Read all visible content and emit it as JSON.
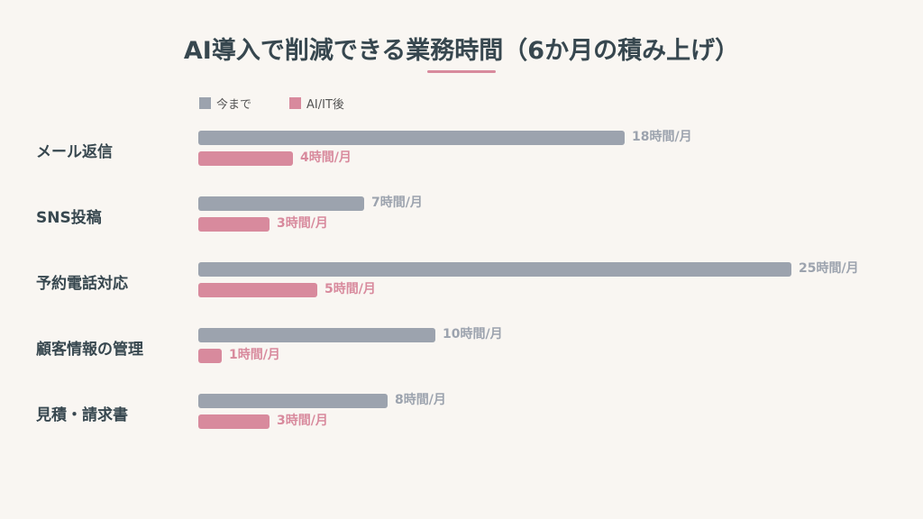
{
  "title": "AI導入で削減できる業務時間（6か月の積み上げ）",
  "legend": [
    {
      "label": "今まで",
      "color": "#9ca3ae"
    },
    {
      "label": "AI/IT後",
      "color": "#d88a9d"
    }
  ],
  "colors": {
    "before": "#9ca3ae",
    "after": "#d88a9d",
    "accent_underline": "#d88a9d",
    "background": "#f9f6f2",
    "text": "#37474f"
  },
  "unit": "時間/月",
  "rows": [
    {
      "label": "メール返信",
      "before": 18,
      "after": 4,
      "before_text": "18時間/月",
      "after_text": "4時間/月"
    },
    {
      "label": "SNS投稿",
      "before": 7,
      "after": 3,
      "before_text": "7時間/月",
      "after_text": "3時間/月"
    },
    {
      "label": "予約電話対応",
      "before": 25,
      "after": 5,
      "before_text": "25時間/月",
      "after_text": "5時間/月"
    },
    {
      "label": "顧客情報の管理",
      "before": 10,
      "after": 1,
      "before_text": "10時間/月",
      "after_text": "1時間/月"
    },
    {
      "label": "見積・請求書",
      "before": 8,
      "after": 3,
      "before_text": "8時間/月",
      "after_text": "3時間/月"
    }
  ],
  "chart_data": {
    "type": "bar",
    "orientation": "horizontal",
    "title": "AI導入で削減できる業務時間（6か月の積み上げ）",
    "categories": [
      "メール返信",
      "SNS投稿",
      "予約電話対応",
      "顧客情報の管理",
      "見積・請求書"
    ],
    "series": [
      {
        "name": "今まで",
        "values": [
          18,
          7,
          25,
          10,
          8
        ]
      },
      {
        "name": "AI/IT後",
        "values": [
          4,
          3,
          5,
          1,
          3
        ]
      }
    ],
    "xlabel": "",
    "ylabel": "",
    "value_unit": "時間/月",
    "grid": false,
    "legend_position": "top-left"
  }
}
